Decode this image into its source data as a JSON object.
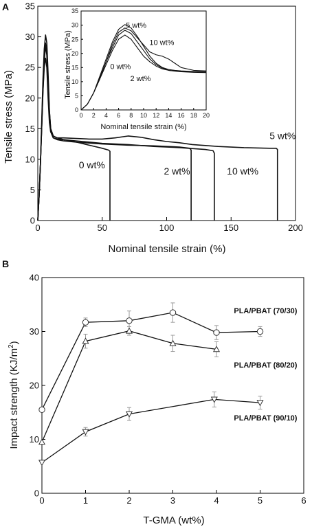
{
  "chart_data": [
    {
      "panel_label": "A",
      "type": "line",
      "xlabel": "Nominal tensile strain (%)",
      "ylabel": "Tensile stress (MPa)",
      "xlim": [
        0,
        200
      ],
      "ylim": [
        0,
        35
      ],
      "xticks": [
        0,
        50,
        100,
        150,
        200
      ],
      "yticks": [
        0,
        5,
        10,
        15,
        20,
        25,
        30,
        35
      ],
      "grid": false,
      "series": [
        {
          "name": "0 wt%",
          "x": [
            0,
            1,
            2,
            3,
            4,
            5,
            6,
            7,
            8,
            9,
            10,
            12,
            15,
            20,
            30,
            40,
            50,
            55,
            56,
            56
          ],
          "y": [
            0,
            4,
            9,
            15,
            21,
            25,
            26.5,
            25,
            20,
            16,
            14.5,
            13.5,
            13.3,
            13.2,
            12.8,
            12.3,
            11.8,
            11.5,
            11.3,
            0
          ]
        },
        {
          "name": "2 wt%",
          "x": [
            0,
            1,
            2,
            3,
            4,
            5,
            6,
            7,
            8,
            9,
            10,
            12,
            15,
            20,
            30,
            50,
            70,
            90,
            110,
            118,
            119,
            119
          ],
          "y": [
            0,
            4,
            9,
            15,
            21,
            26,
            28.5,
            27,
            22,
            17,
            14.5,
            13.5,
            13.2,
            13,
            12.8,
            12.5,
            12.3,
            12.2,
            12,
            11.8,
            11.5,
            0
          ]
        },
        {
          "name": "5 wt%",
          "x": [
            0,
            1,
            2,
            3,
            4,
            5,
            6,
            7,
            8,
            9,
            10,
            12,
            15,
            20,
            30,
            40,
            50,
            60,
            70,
            80,
            90,
            100,
            110,
            120,
            140,
            160,
            180,
            185,
            186,
            186
          ],
          "y": [
            0,
            4,
            9,
            16,
            23,
            28,
            30.3,
            29,
            24,
            18,
            15,
            13.8,
            13.5,
            13.5,
            13.4,
            13.3,
            13.3,
            13.5,
            13.8,
            13.6,
            13.2,
            12.9,
            12.7,
            12.4,
            12.1,
            11.9,
            11.8,
            11.8,
            11.6,
            0
          ]
        },
        {
          "name": "10 wt%",
          "x": [
            0,
            1,
            2,
            3,
            4,
            5,
            6,
            7,
            8,
            9,
            10,
            12,
            15,
            20,
            30,
            50,
            70,
            90,
            110,
            130,
            136,
            137,
            137
          ],
          "y": [
            0,
            4,
            9,
            15,
            22,
            26.5,
            29,
            27.5,
            23,
            18,
            15,
            13.8,
            13.5,
            13.2,
            13,
            12.6,
            12.4,
            12.1,
            11.9,
            11.6,
            11.4,
            11,
            0
          ]
        }
      ],
      "annotations": [
        {
          "text": "0 wt%",
          "x": 42,
          "y": 8.5
        },
        {
          "text": "2 wt%",
          "x": 108,
          "y": 7.5
        },
        {
          "text": "10 wt%",
          "x": 159,
          "y": 7.5
        },
        {
          "text": "5 wt%",
          "x": 190,
          "y": 13.3
        }
      ],
      "inset": {
        "type": "line",
        "xlabel": "Nominal tensile strain (%)",
        "ylabel": "Tensile stress (MPa)",
        "xlim": [
          0,
          20
        ],
        "ylim": [
          0,
          35
        ],
        "xticks": [
          0,
          2,
          4,
          6,
          8,
          10,
          12,
          14,
          16,
          18,
          20
        ],
        "yticks": [
          0,
          5,
          10,
          15,
          20,
          25,
          30,
          35
        ],
        "series": [
          {
            "name": "0 wt%",
            "x": [
              0,
              1,
              2,
              3,
              4,
              5,
              6,
              7,
              8,
              9,
              10,
              11,
              12,
              13,
              14,
              15,
              16,
              18,
              20
            ],
            "y": [
              0,
              2,
              6,
              11,
              16,
              21,
              25,
              26.5,
              25,
              22,
              19,
              17,
              15.5,
              14.5,
              14,
              13.8,
              13.6,
              13.5,
              13.4
            ]
          },
          {
            "name": "2 wt%",
            "x": [
              0,
              1,
              2,
              3,
              4,
              5,
              6,
              7,
              8,
              9,
              10,
              11,
              12,
              13,
              14,
              15,
              16,
              18,
              20
            ],
            "y": [
              0,
              2,
              6,
              11,
              17,
              22,
              26.5,
              28.2,
              27,
              24,
              21,
              18,
              16,
              14.8,
              14,
              13.7,
              13.5,
              13.3,
              13.2
            ]
          },
          {
            "name": "5 wt%",
            "x": [
              0,
              1,
              2,
              3,
              4,
              5,
              6,
              7,
              8,
              9,
              10,
              11,
              12,
              13,
              14,
              15,
              16,
              18,
              20
            ],
            "y": [
              0,
              2,
              6,
              12,
              18,
              24,
              28.5,
              30.2,
              29,
              26,
              22.5,
              19,
              16.5,
              15,
              14.3,
              14,
              13.8,
              13.6,
              13.5
            ]
          },
          {
            "name": "10 wt%",
            "x": [
              0,
              1,
              2,
              3,
              4,
              5,
              6,
              7,
              8,
              9,
              10,
              11,
              12,
              13,
              14,
              15,
              16,
              18,
              20
            ],
            "y": [
              0,
              2,
              6,
              11.5,
              17,
              23,
              27.5,
              29,
              28,
              25.5,
              23,
              20.5,
              19.5,
              19,
              18,
              16.5,
              15,
              14,
              13.8
            ]
          }
        ],
        "annotations": [
          {
            "text": "5 wt%",
            "x": 8.8,
            "y": 29
          },
          {
            "text": "10 wt%",
            "x": 12.9,
            "y": 23
          },
          {
            "text": "0 wt%",
            "x": 6.3,
            "y": 14.5
          },
          {
            "text": "2 wt%",
            "x": 9.5,
            "y": 10.2
          }
        ]
      }
    },
    {
      "panel_label": "B",
      "type": "scatter",
      "xlabel": "T-GMA (wt%)",
      "ylabel": "Impact strength (KJ/m",
      "ylabel_superscript": "2",
      "ylabel_suffix": ")",
      "xlim": [
        0,
        6
      ],
      "ylim": [
        0,
        40
      ],
      "xticks": [
        0,
        1,
        2,
        3,
        4,
        5,
        6
      ],
      "yticks": [
        0,
        10,
        20,
        30,
        40
      ],
      "grid": false,
      "series": [
        {
          "name": "PLA/PBAT (70/30)",
          "marker": "circle",
          "x": [
            0,
            1,
            2,
            3,
            4,
            5
          ],
          "y": [
            15.5,
            31.7,
            32.0,
            33.5,
            29.8,
            30.0
          ],
          "err": [
            0,
            0.8,
            1.8,
            1.8,
            1.3,
            0.9
          ]
        },
        {
          "name": "PLA/PBAT (80/20)",
          "marker": "triangle-up",
          "x": [
            0,
            1,
            2,
            3,
            4
          ],
          "y": [
            9.5,
            28.2,
            30.1,
            27.8,
            26.7
          ],
          "err": [
            0,
            1.3,
            0.8,
            1.5,
            1.4
          ]
        },
        {
          "name": "PLA/PBAT (90/10)",
          "marker": "triangle-down",
          "x": [
            0,
            1,
            2,
            3.95,
            5
          ],
          "y": [
            5.7,
            11.4,
            14.7,
            17.4,
            16.8
          ],
          "err": [
            0,
            0.8,
            1.2,
            1.4,
            1.2
          ]
        }
      ],
      "annotations": [
        {
          "text": "PLA/PBAT (70/30)",
          "x": 5.85,
          "y": 33.4
        },
        {
          "text": "PLA/PBAT (80/20)",
          "x": 5.85,
          "y": 23.3
        },
        {
          "text": "PLA/PBAT (90/10)",
          "x": 5.85,
          "y": 13.5
        }
      ]
    }
  ]
}
